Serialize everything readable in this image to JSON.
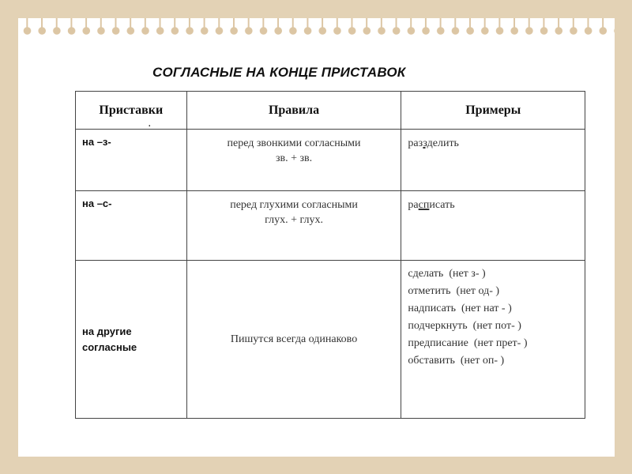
{
  "title": "СОГЛАСНЫЕ НА КОНЦЕ ПРИСТАВОК",
  "table": {
    "headers": [
      "Приставки",
      "Правила",
      "Примеры"
    ],
    "header_mark": ".",
    "rows": [
      {
        "prefix": "на –з-",
        "rule": [
          "перед звонкими согласными",
          "зв. + зв."
        ],
        "example": {
          "before": "раз",
          "underlined": "зд",
          "after": "елить"
        }
      },
      {
        "prefix": "на –с-",
        "rule": [
          "перед глухими согласными",
          "глух. + глух."
        ],
        "example": {
          "before": "ра",
          "underlined": "сп",
          "after": "исать"
        }
      },
      {
        "prefix": [
          "на другие",
          "согласные"
        ],
        "rule": [
          "Пишутся всегда одинаково"
        ],
        "examples": [
          "сделать  (нет з- )",
          "отметить  (нет од- )",
          "надписать  (нет нат - )",
          "подчеркнуть  (нет пот- )",
          "предписание  (нет прет- )",
          "обставить  (нет оп- )"
        ]
      }
    ]
  },
  "colors": {
    "background": "#e3d2b5",
    "paper": "#ffffff",
    "border": "#444444"
  }
}
